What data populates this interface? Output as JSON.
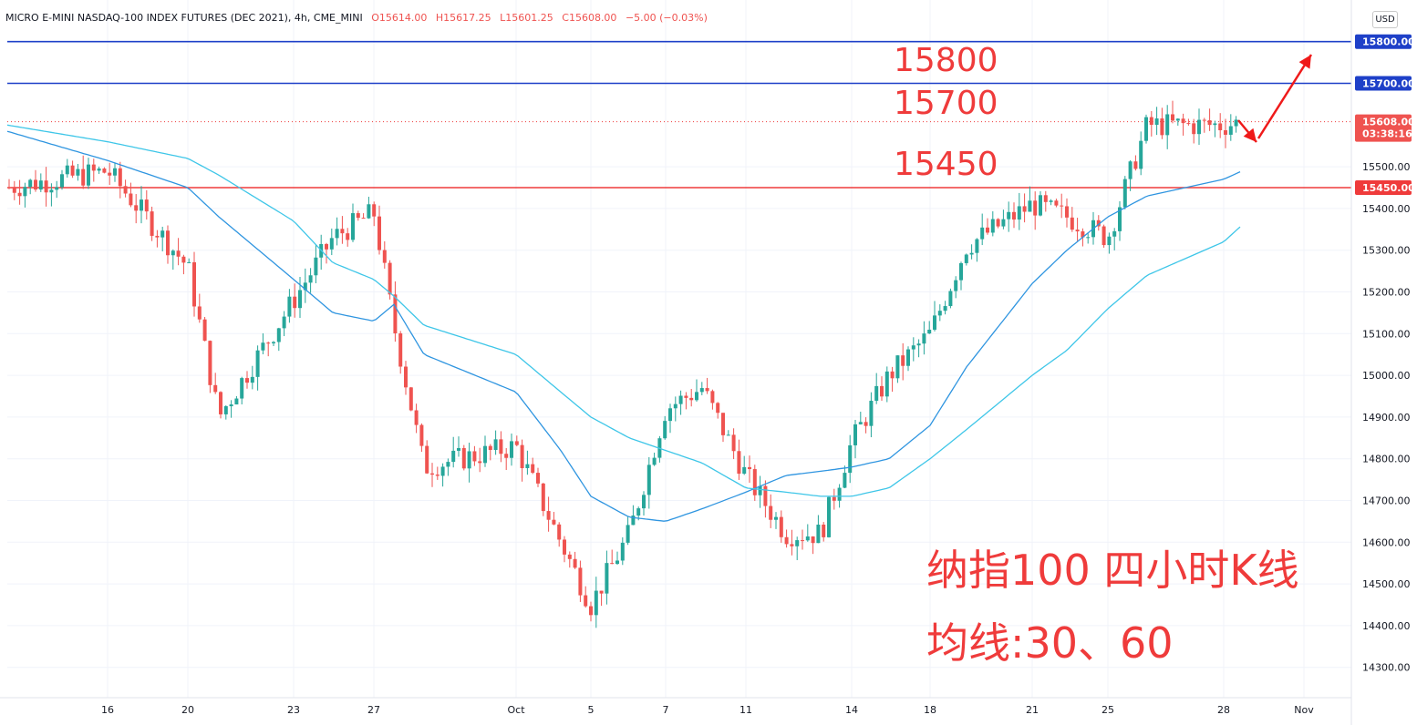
{
  "header": {
    "symbol": "MICRO E-MINI NASDAQ-100 INDEX FUTURES (DEC 2021), 4h, CME_MINI",
    "open": "O15614.00",
    "high": "H15617.25",
    "low": "L15601.25",
    "close": "C15608.00",
    "change": "−5.00 (−0.03%)"
  },
  "currency_button": "USD",
  "annotations": {
    "level_15800": "15800",
    "level_15700": "15700",
    "level_15450": "15450",
    "title_line1": "纳指100 四小时K线",
    "title_line2": "均线:30、60"
  },
  "price_tags": {
    "tag_15800": "15800.00",
    "tag_15700": "15700.00",
    "tag_current": "15608.00",
    "countdown": "03:38:16",
    "tag_15450": "15450.00"
  },
  "colors": {
    "up": "#26a69a",
    "down": "#ef5350",
    "ma30": "#2f95e0",
    "ma60": "#3ec6e8",
    "blue_line": "#1e40c8",
    "red_line": "#ef3b3b",
    "arrow": "#ef1a1a"
  },
  "chart_data": {
    "type": "candlestick",
    "interval": "4h",
    "ylim": [
      14230,
      15870
    ],
    "y_ticks": [
      "15500.00",
      "15400.00",
      "15300.00",
      "15200.00",
      "15100.00",
      "15000.00",
      "14900.00",
      "14800.00",
      "14700.00",
      "14600.00",
      "14500.00",
      "14400.00",
      "14300.00"
    ],
    "x_ticks": [
      "16",
      "20",
      "23",
      "27",
      "Oct",
      "5",
      "7",
      "11",
      "14",
      "18",
      "21",
      "25",
      "28",
      "Nov"
    ],
    "grid": true,
    "horizontal_lines": [
      {
        "level": 15800,
        "color": "blue"
      },
      {
        "level": 15700,
        "color": "blue"
      },
      {
        "level": 15450,
        "color": "red"
      },
      {
        "level": 15608,
        "color": "red",
        "style": "dotted"
      }
    ],
    "moving_averages": [
      "MA30",
      "MA60"
    ],
    "anchors": [
      {
        "at": "start",
        "close": 15450,
        "ma30": 15585,
        "ma60": 15600
      },
      {
        "at": "16",
        "close": 15490,
        "ma30": 15515,
        "ma60": 15560
      },
      {
        "at": "20",
        "close": 15260,
        "ma30": 15450,
        "ma60": 15520
      },
      {
        "at": "21",
        "close": 14900,
        "ma30": 15380,
        "ma60": 15480
      },
      {
        "at": "23",
        "close": 15180,
        "ma30": 15230,
        "ma60": 15370
      },
      {
        "at": "25",
        "close": 15330,
        "ma30": 15150,
        "ma60": 15270
      },
      {
        "at": "27",
        "close": 15390,
        "ma30": 15130,
        "ma60": 15230
      },
      {
        "at": "28",
        "close": 15120,
        "ma30": 15170,
        "ma60": 15190
      },
      {
        "at": "29",
        "close": 14780,
        "ma30": 15050,
        "ma60": 15120
      },
      {
        "at": "Oct",
        "close": 14830,
        "ma30": 14960,
        "ma60": 15050
      },
      {
        "at": "4",
        "close": 14600,
        "ma30": 14820,
        "ma60": 14960
      },
      {
        "at": "5",
        "close": 14450,
        "ma30": 14710,
        "ma60": 14900
      },
      {
        "at": "6",
        "close": 14620,
        "ma30": 14660,
        "ma60": 14850
      },
      {
        "at": "7",
        "close": 14920,
        "ma30": 14650,
        "ma60": 14820
      },
      {
        "at": "8",
        "close": 14970,
        "ma30": 14680,
        "ma60": 14790
      },
      {
        "at": "11",
        "close": 14760,
        "ma30": 14720,
        "ma60": 14730
      },
      {
        "at": "12",
        "close": 14620,
        "ma30": 14760,
        "ma60": 14720
      },
      {
        "at": "13",
        "close": 14620,
        "ma30": 14770,
        "ma60": 14710
      },
      {
        "at": "14",
        "close": 14840,
        "ma30": 14780,
        "ma60": 14710
      },
      {
        "at": "15",
        "close": 15000,
        "ma30": 14800,
        "ma60": 14730
      },
      {
        "at": "18",
        "close": 15100,
        "ma30": 14880,
        "ma60": 14800
      },
      {
        "at": "19",
        "close": 15310,
        "ma30": 15020,
        "ma60": 14870
      },
      {
        "at": "21",
        "close": 15410,
        "ma30": 15220,
        "ma60": 15000
      },
      {
        "at": "22",
        "close": 15380,
        "ma30": 15300,
        "ma60": 15060
      },
      {
        "at": "25",
        "close": 15330,
        "ma30": 15380,
        "ma60": 15160
      },
      {
        "at": "26",
        "close": 15600,
        "ma30": 15430,
        "ma60": 15240
      },
      {
        "at": "28",
        "close": 15600,
        "ma30": 15470,
        "ma60": 15320
      },
      {
        "at": "end",
        "close": 15608,
        "ma30": 15490,
        "ma60": 15360
      }
    ]
  }
}
